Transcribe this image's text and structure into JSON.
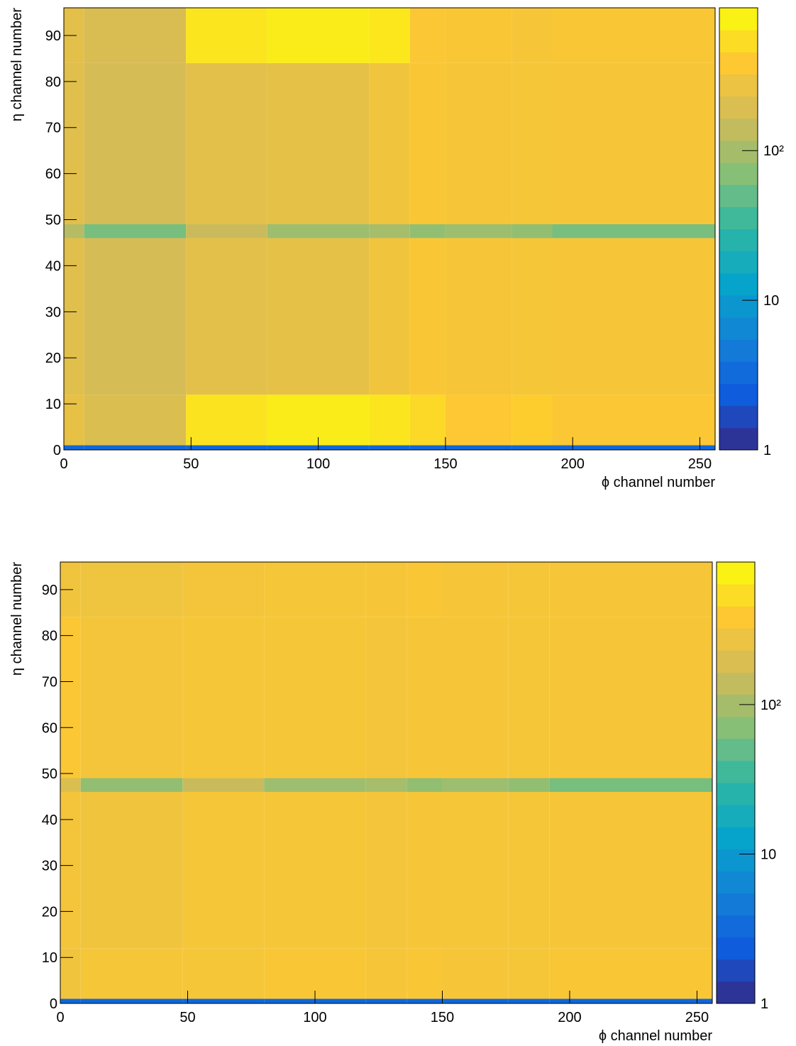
{
  "chart_data": [
    {
      "type": "heatmap",
      "x_label": "ϕ channel number",
      "y_label": "η channel number",
      "xlim": [
        0,
        256
      ],
      "ylim": [
        0,
        96
      ],
      "xticks": [
        0,
        50,
        100,
        150,
        200,
        250
      ],
      "yticks": [
        0,
        10,
        20,
        30,
        40,
        50,
        60,
        70,
        80,
        90
      ],
      "xbins": [
        0,
        8,
        48,
        80,
        120,
        136,
        150,
        176,
        192,
        256
      ],
      "ybins": [
        0,
        1,
        12,
        46,
        49,
        84,
        96
      ],
      "z": [
        [
          3,
          3,
          3,
          3,
          3,
          3,
          3,
          3,
          3
        ],
        [
          250,
          200,
          600,
          700,
          620,
          500,
          380,
          420,
          370
        ],
        [
          220,
          180,
          230,
          240,
          300,
          350,
          340,
          330,
          340
        ],
        [
          120,
          60,
          150,
          90,
          100,
          80,
          90,
          80,
          60
        ],
        [
          220,
          180,
          230,
          240,
          300,
          350,
          340,
          330,
          340
        ],
        [
          230,
          190,
          620,
          700,
          650,
          360,
          350,
          340,
          350
        ]
      ],
      "zlim": [
        1,
        900
      ],
      "log_z": true,
      "zticks": [
        1,
        10,
        {
          "value": 100,
          "label": "10²"
        }
      ],
      "palette": [
        "#352a87",
        "#0f5cdd",
        "#1481d6",
        "#06a4ca",
        "#2eb7a4",
        "#87bf77",
        "#d1bb59",
        "#fec832",
        "#f9fb0e"
      ]
    },
    {
      "type": "heatmap",
      "x_label": "ϕ channel number",
      "y_label": "η channel number",
      "xlim": [
        0,
        256
      ],
      "ylim": [
        0,
        96
      ],
      "xticks": [
        0,
        50,
        100,
        150,
        200,
        250
      ],
      "yticks": [
        0,
        10,
        20,
        30,
        40,
        50,
        60,
        70,
        80,
        90
      ],
      "xbins": [
        0,
        8,
        48,
        80,
        120,
        136,
        150,
        176,
        192,
        256
      ],
      "ybins": [
        0,
        1,
        12,
        46,
        49,
        84,
        96
      ],
      "z": [
        [
          3,
          3,
          3,
          3,
          3,
          3,
          3,
          3,
          3
        ],
        [
          300,
          330,
          330,
          350,
          340,
          350,
          340,
          330,
          350
        ],
        [
          320,
          300,
          330,
          330,
          320,
          340,
          330,
          330,
          340
        ],
        [
          200,
          80,
          150,
          90,
          100,
          80,
          90,
          80,
          60
        ],
        [
          360,
          320,
          330,
          330,
          320,
          340,
          340,
          330,
          340
        ],
        [
          300,
          290,
          320,
          330,
          340,
          350,
          340,
          330,
          340
        ]
      ],
      "zlim": [
        1,
        900
      ],
      "log_z": true,
      "zticks": [
        1,
        10,
        {
          "value": 100,
          "label": "10²"
        }
      ],
      "palette": [
        "#352a87",
        "#0f5cdd",
        "#1481d6",
        "#06a4ca",
        "#2eb7a4",
        "#87bf77",
        "#d1bb59",
        "#fec832",
        "#f9fb0e"
      ]
    }
  ]
}
